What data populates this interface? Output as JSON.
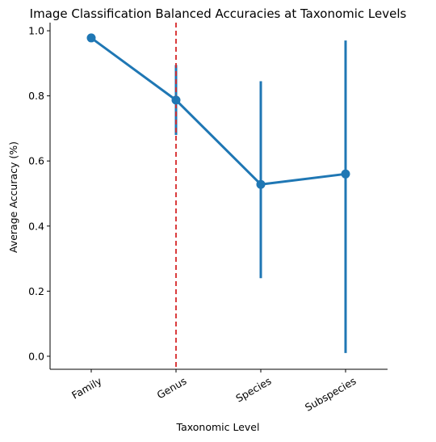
{
  "chart_data": {
    "type": "line",
    "title": "Image Classification Balanced Accuracies at Taxonomic Levels",
    "xlabel": "Taxonomic Level",
    "ylabel": "Average Accuracy (%)",
    "categories": [
      "Family",
      "Genus",
      "Species",
      "Subspecies"
    ],
    "ylim": [
      -0.04,
      1.025
    ],
    "yticks": [
      0.0,
      0.2,
      0.4,
      0.6,
      0.8,
      1.0
    ],
    "ytick_labels": [
      "0.0",
      "0.2",
      "0.4",
      "0.6",
      "0.8",
      "1.0"
    ],
    "xtick_rotation": 30,
    "grid": false,
    "series": [
      {
        "values": [
          0.978,
          0.787,
          0.528,
          0.56
        ],
        "error_low": [
          0.978,
          0.68,
          0.24,
          0.01
        ],
        "error_high": [
          0.978,
          0.895,
          0.845,
          0.97
        ],
        "color": "#1f77b4"
      }
    ],
    "reference_line": {
      "category": "Genus",
      "color": "#d62728",
      "style": "dashed"
    }
  }
}
